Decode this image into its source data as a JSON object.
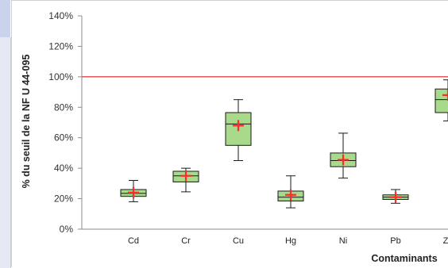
{
  "chart_data": {
    "type": "boxplot",
    "title": "",
    "ylabel": "% du seuil de la NF U 44-095",
    "xlabel": "Contaminants",
    "ylim": [
      0,
      140
    ],
    "y_ticks": [
      "0%",
      "20%",
      "40%",
      "60%",
      "80%",
      "100%",
      "120%",
      "140%"
    ],
    "y_tick_values": [
      0,
      20,
      40,
      60,
      80,
      100,
      120,
      140
    ],
    "threshold": 100,
    "categories": [
      "Cd",
      "Cr",
      "Cu",
      "Hg",
      "Ni",
      "Pb",
      "Zn"
    ],
    "boxes": [
      {
        "category": "Cd",
        "min": 18,
        "q1": 21.5,
        "median": 23.5,
        "q3": 26,
        "max": 32,
        "mean": 24
      },
      {
        "category": "Cr",
        "min": 24.5,
        "q1": 31,
        "median": 35,
        "q3": 38,
        "max": 40,
        "mean": 35
      },
      {
        "category": "Cu",
        "min": 45,
        "q1": 55,
        "median": 69,
        "q3": 76.5,
        "max": 85,
        "mean": 68
      },
      {
        "category": "Hg",
        "min": 14,
        "q1": 18.5,
        "median": 21,
        "q3": 25,
        "max": 35,
        "mean": 22.5
      },
      {
        "category": "Ni",
        "min": 33.5,
        "q1": 41,
        "median": 45,
        "q3": 50,
        "max": 63,
        "mean": 45.5
      },
      {
        "category": "Pb",
        "min": 17,
        "q1": 19.5,
        "median": 21,
        "q3": 22.5,
        "max": 26,
        "mean": 21
      },
      {
        "category": "Zn",
        "min": 71,
        "q1": 76.5,
        "median": 85,
        "q3": 92,
        "max": 98,
        "mean": 88
      }
    ],
    "colors": {
      "box_fill": "#a9d98a",
      "box_stroke": "#1a1a1a",
      "mean_marker": "#ff2a2a",
      "threshold_line": "#e04545"
    },
    "grid": false,
    "legend": "none"
  }
}
